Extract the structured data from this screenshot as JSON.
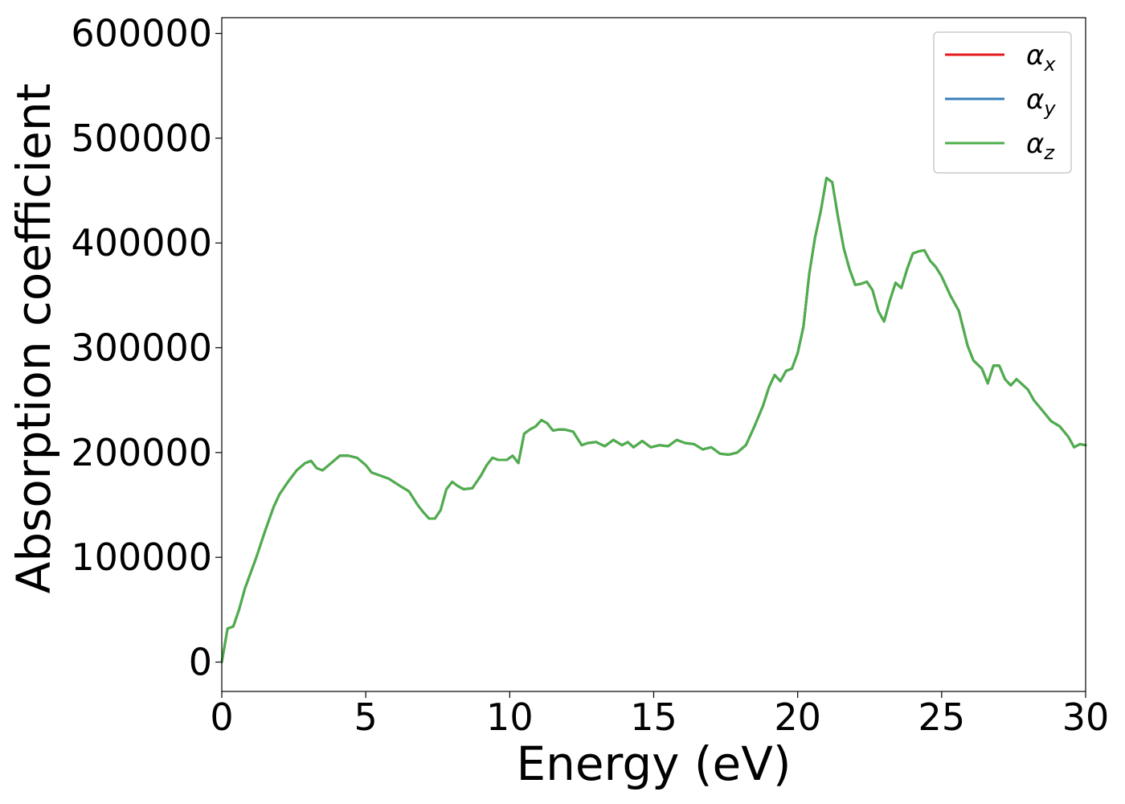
{
  "chart_data": {
    "type": "line",
    "xlabel": "Energy (eV)",
    "ylabel": "Absorption coefficient",
    "xlim": [
      0,
      30
    ],
    "ylim": [
      -28000,
      615000
    ],
    "xticks": [
      0,
      5,
      10,
      15,
      20,
      25,
      30
    ],
    "yticks": [
      0,
      100000,
      200000,
      300000,
      400000,
      500000,
      600000
    ],
    "xtick_labels": [
      "0",
      "5",
      "10",
      "15",
      "20",
      "25",
      "30"
    ],
    "ytick_labels": [
      "0",
      "100000",
      "200000",
      "300000",
      "400000",
      "500000",
      "600000"
    ],
    "grid": false,
    "legend_position": "top-right",
    "x": [
      0,
      0.2,
      0.4,
      0.6,
      0.8,
      1.0,
      1.2,
      1.5,
      1.8,
      2.0,
      2.3,
      2.6,
      2.9,
      3.1,
      3.3,
      3.5,
      3.8,
      4.1,
      4.4,
      4.7,
      5.0,
      5.2,
      5.5,
      5.8,
      6.2,
      6.5,
      6.8,
      7.0,
      7.2,
      7.4,
      7.6,
      7.8,
      8.0,
      8.2,
      8.4,
      8.7,
      9.0,
      9.2,
      9.4,
      9.6,
      9.9,
      10.1,
      10.3,
      10.5,
      10.7,
      10.9,
      11.1,
      11.3,
      11.5,
      11.7,
      11.9,
      12.2,
      12.5,
      12.7,
      13.0,
      13.3,
      13.6,
      13.9,
      14.1,
      14.3,
      14.6,
      14.9,
      15.2,
      15.5,
      15.8,
      16.1,
      16.4,
      16.7,
      17.0,
      17.3,
      17.6,
      17.9,
      18.2,
      18.5,
      18.8,
      19.0,
      19.2,
      19.4,
      19.6,
      19.8,
      20.0,
      20.2,
      20.4,
      20.6,
      20.8,
      21.0,
      21.2,
      21.4,
      21.6,
      21.8,
      22.0,
      22.2,
      22.4,
      22.6,
      22.8,
      23.0,
      23.2,
      23.4,
      23.6,
      23.8,
      24.0,
      24.2,
      24.4,
      24.6,
      24.8,
      25.0,
      25.3,
      25.6,
      25.9,
      26.1,
      26.4,
      26.6,
      26.8,
      27.0,
      27.2,
      27.4,
      27.6,
      27.8,
      28.0,
      28.2,
      28.5,
      28.8,
      29.1,
      29.4,
      29.6,
      29.8,
      30.0
    ],
    "series": [
      {
        "name": "αx",
        "label": "α",
        "sub": "x",
        "color": "#e41a1c",
        "width": 3
      },
      {
        "name": "αy",
        "label": "α",
        "sub": "y",
        "color": "#377eb8",
        "width": 3
      },
      {
        "name": "αz",
        "label": "α",
        "sub": "z",
        "color": "#4daf4a",
        "width": 3
      }
    ],
    "values": [
      0,
      32000,
      34000,
      50000,
      70000,
      85000,
      100000,
      125000,
      148000,
      160000,
      172000,
      183000,
      190000,
      192000,
      185000,
      183000,
      190000,
      197000,
      197000,
      195000,
      188000,
      181000,
      178000,
      175000,
      168000,
      163000,
      150000,
      143000,
      137000,
      137000,
      145000,
      165000,
      172000,
      168000,
      165000,
      166000,
      178000,
      188000,
      195000,
      193000,
      193000,
      197000,
      190000,
      218000,
      222000,
      225000,
      231000,
      228000,
      221000,
      222000,
      222000,
      220000,
      207000,
      209000,
      210000,
      206000,
      212000,
      207000,
      210000,
      205000,
      211000,
      205000,
      207000,
      206000,
      212000,
      209000,
      208000,
      203000,
      205000,
      199000,
      198000,
      200000,
      207000,
      225000,
      245000,
      262000,
      274000,
      268000,
      278000,
      280000,
      295000,
      320000,
      370000,
      405000,
      430000,
      462000,
      458000,
      425000,
      395000,
      375000,
      360000,
      361000,
      363000,
      355000,
      335000,
      325000,
      345000,
      362000,
      357000,
      375000,
      390000,
      392000,
      393000,
      383000,
      377000,
      368000,
      350000,
      335000,
      302000,
      288000,
      280000,
      266000,
      283000,
      283000,
      270000,
      264000,
      270000,
      265000,
      260000,
      250000,
      240000,
      230000,
      225000,
      215000,
      205000,
      208000,
      207000
    ]
  }
}
